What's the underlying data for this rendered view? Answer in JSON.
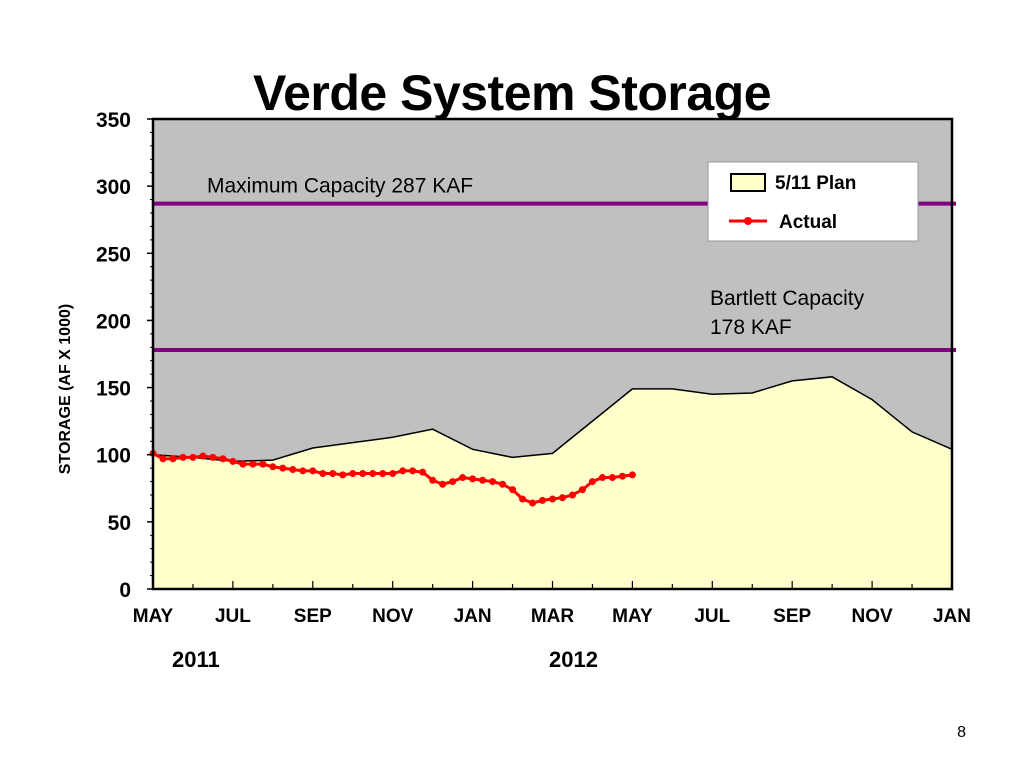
{
  "slide": {
    "title": "Verde System Storage",
    "page_number": "8"
  },
  "chart_data": {
    "type": "area",
    "ylabel": "STORAGE (AF X 1000)",
    "ylim": [
      0,
      350
    ],
    "yticks": [
      "0",
      "50",
      "100",
      "150",
      "200",
      "250",
      "300",
      "350"
    ],
    "x_tick_labels": [
      "MAY",
      "JUL",
      "SEP",
      "NOV",
      "JAN",
      "MAR",
      "MAY",
      "JUL",
      "SEP",
      "NOV",
      "JAN"
    ],
    "year_labels": [
      "2011",
      "2012"
    ],
    "xlim": [
      0,
      20
    ],
    "x_unit": "months since May 2011",
    "grid": false,
    "legend_position": "top-right",
    "colors": {
      "plot_background": "#c0c0c0",
      "plan_fill": "#ffffcc",
      "actual": "#ff0000",
      "capacity_line": "#800080"
    },
    "reference_lines": [
      {
        "value": 287,
        "label": "Maximum Capacity 287 KAF"
      },
      {
        "value": 178,
        "label": "Bartlett Capacity",
        "label2": "178 KAF"
      }
    ],
    "series": [
      {
        "name": "5/11 Plan",
        "kind": "area",
        "x": [
          0,
          1,
          2,
          3,
          4,
          5,
          6,
          7,
          8,
          9,
          10,
          11,
          12,
          13,
          14,
          15,
          16,
          17,
          18,
          19,
          20
        ],
        "values": [
          100,
          98,
          95,
          96,
          105,
          109,
          113,
          119,
          104,
          98,
          101,
          125,
          149,
          149,
          145,
          146,
          155,
          158,
          141,
          117,
          104
        ]
      },
      {
        "name": "Actual",
        "kind": "line-markers",
        "x": [
          0,
          0.25,
          0.5,
          0.75,
          1,
          1.25,
          1.5,
          1.75,
          2,
          2.25,
          2.5,
          2.75,
          3,
          3.25,
          3.5,
          3.75,
          4,
          4.25,
          4.5,
          4.75,
          5,
          5.25,
          5.5,
          5.75,
          6,
          6.25,
          6.5,
          6.75,
          7,
          7.25,
          7.5,
          7.75,
          8,
          8.25,
          8.5,
          8.75,
          9,
          9.25,
          9.5,
          9.75,
          10,
          10.25,
          10.5,
          10.75,
          11,
          11.25,
          11.5,
          11.75,
          12
        ],
        "values": [
          101,
          97,
          97,
          98,
          98,
          99,
          98,
          97,
          95,
          93,
          93,
          93,
          91,
          90,
          89,
          88,
          88,
          86,
          86,
          85,
          86,
          86,
          86,
          86,
          86,
          88,
          88,
          87,
          81,
          78,
          80,
          83,
          82,
          81,
          80,
          78,
          74,
          67,
          64,
          66,
          67,
          68,
          70,
          74,
          80,
          83,
          83,
          84,
          85
        ]
      }
    ]
  }
}
